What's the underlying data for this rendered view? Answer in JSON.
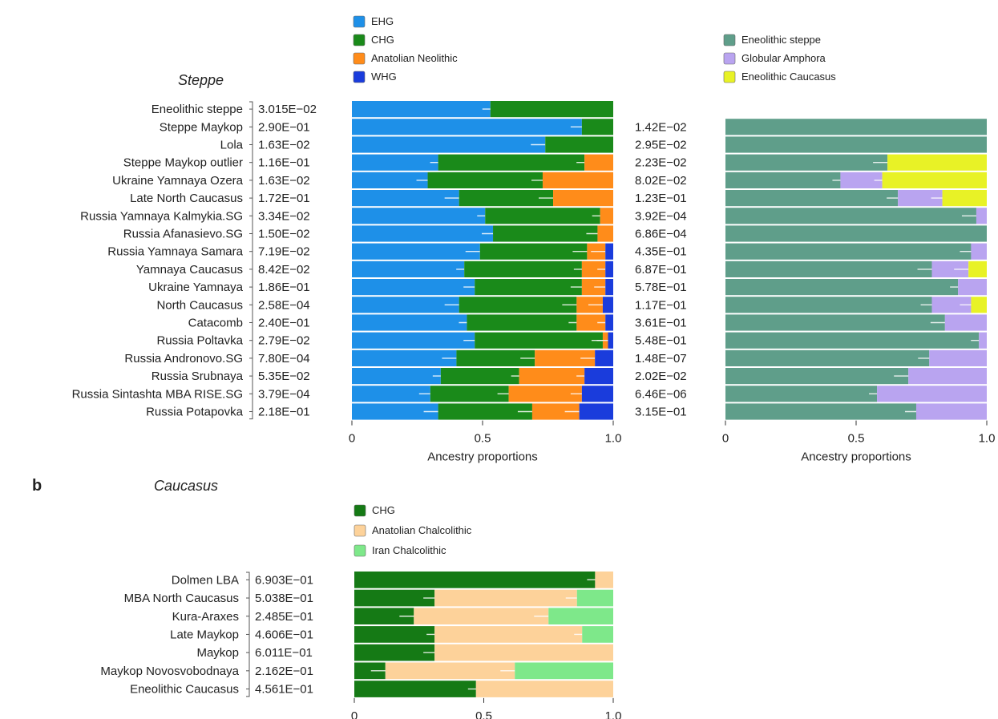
{
  "panel_b_letter": "b",
  "chart_data": [
    {
      "type": "bar",
      "stacked": true,
      "orientation": "horizontal",
      "section_title": "Steppe",
      "xlabel": "Ancestry proportions",
      "xlim": [
        0,
        1.0
      ],
      "xticks": [
        "0",
        "0.5",
        "1.0"
      ],
      "legend": [
        {
          "name": "EHG",
          "color": "#1e90e8"
        },
        {
          "name": "CHG",
          "color": "#1a8a1a"
        },
        {
          "name": "Anatolian Neolithic",
          "color": "#ff8c1a"
        },
        {
          "name": "WHG",
          "color": "#1a3cdc"
        }
      ],
      "categories": [
        "Eneolithic steppe",
        "Steppe Maykop",
        "Lola",
        "Steppe Maykop outlier",
        "Ukraine Yamnaya Ozera",
        "Late North Caucasus",
        "Russia Yamnaya Kalmykia.SG",
        "Russia Afanasievo.SG",
        "Russia Yamnaya Samara",
        "Yamnaya Caucasus",
        "Ukraine Yamnaya",
        "North Caucasus",
        "Catacomb",
        "Russia Poltavka",
        "Russia Andronovo.SG",
        "Russia Srubnaya",
        "Russia Sintashta MBA RISE.SG",
        "Russia Potapovka"
      ],
      "p_values": [
        "3.015E−02",
        "2.90E−01",
        "1.63E−02",
        "1.16E−01",
        "1.63E−02",
        "1.72E−01",
        "3.34E−02",
        "1.50E−02",
        "7.19E−02",
        "8.42E−02",
        "1.86E−01",
        "2.58E−04",
        "2.40E−01",
        "2.79E−02",
        "7.80E−04",
        "5.35E−02",
        "3.79E−04",
        "2.18E−01"
      ],
      "series": [
        {
          "name": "EHG",
          "values": [
            0.53,
            0.88,
            0.74,
            0.33,
            0.29,
            0.41,
            0.51,
            0.54,
            0.49,
            0.43,
            0.47,
            0.41,
            0.44,
            0.47,
            0.4,
            0.34,
            0.3,
            0.33
          ]
        },
        {
          "name": "CHG",
          "values": [
            0.47,
            0.12,
            0.26,
            0.56,
            0.44,
            0.36,
            0.44,
            0.4,
            0.41,
            0.45,
            0.41,
            0.45,
            0.42,
            0.49,
            0.3,
            0.3,
            0.3,
            0.36
          ]
        },
        {
          "name": "Anatolian Neolithic",
          "values": [
            0,
            0,
            0,
            0.11,
            0.27,
            0.23,
            0.05,
            0.06,
            0.07,
            0.09,
            0.09,
            0.1,
            0.11,
            0.02,
            0.23,
            0.25,
            0.28,
            0.18
          ]
        },
        {
          "name": "WHG",
          "values": [
            0,
            0,
            0,
            0,
            0,
            0,
            0,
            0,
            0.03,
            0.03,
            0.03,
            0.04,
            0.03,
            0.02,
            0.07,
            0.11,
            0.12,
            0.13
          ]
        }
      ]
    },
    {
      "type": "bar",
      "stacked": true,
      "orientation": "horizontal",
      "xlabel": "Ancestry proportions",
      "xlim": [
        0,
        1.0
      ],
      "xticks": [
        "0",
        "0.5",
        "1.0"
      ],
      "legend": [
        {
          "name": "Eneolithic steppe",
          "color": "#5f9e8a"
        },
        {
          "name": "Globular Amphora",
          "color": "#b9a4f0"
        },
        {
          "name": "Eneolithic Caucasus",
          "color": "#e8f226"
        }
      ],
      "categories": [
        "Steppe Maykop",
        "Lola",
        "Steppe Maykop outlier",
        "Ukraine Yamnaya Ozera",
        "Late North Caucasus",
        "Russia Yamnaya Kalmykia.SG",
        "Russia Afanasievo.SG",
        "Russia Yamnaya Samara",
        "Yamnaya Caucasus",
        "Ukraine Yamnaya",
        "North Caucasus",
        "Catacomb",
        "Russia Poltavka",
        "Russia Andronovo.SG",
        "Russia Srubnaya",
        "Russia Sintashta MBA RISE.SG",
        "Russia Potapovka"
      ],
      "p_values": [
        "1.42E−02",
        "2.95E−02",
        "2.23E−02",
        "8.02E−02",
        "1.23E−01",
        "3.92E−04",
        "6.86E−04",
        "4.35E−01",
        "6.87E−01",
        "5.78E−01",
        "1.17E−01",
        "3.61E−01",
        "5.48E−01",
        "1.48E−07",
        "2.02E−02",
        "6.46E−06",
        "3.15E−01"
      ],
      "series": [
        {
          "name": "Eneolithic steppe",
          "values": [
            1.0,
            1.0,
            0.62,
            0.44,
            0.66,
            0.96,
            1.0,
            0.94,
            0.79,
            0.89,
            0.79,
            0.84,
            0.97,
            0.78,
            0.7,
            0.58,
            0.73
          ]
        },
        {
          "name": "Globular Amphora",
          "values": [
            0,
            0,
            0,
            0.16,
            0.17,
            0.04,
            0,
            0.06,
            0.14,
            0.11,
            0.15,
            0.16,
            0.03,
            0.22,
            0.3,
            0.42,
            0.27
          ]
        },
        {
          "name": "Eneolithic Caucasus",
          "values": [
            0,
            0,
            0.38,
            0.4,
            0.17,
            0,
            0,
            0,
            0.07,
            0,
            0.06,
            0,
            0,
            0,
            0,
            0,
            0
          ]
        }
      ]
    },
    {
      "type": "bar",
      "stacked": true,
      "orientation": "horizontal",
      "section_title": "Caucasus",
      "xlim": [
        0,
        1.0
      ],
      "xticks": [
        "0",
        "0.5",
        "1.0"
      ],
      "legend": [
        {
          "name": "CHG",
          "color": "#157a15"
        },
        {
          "name": "Anatolian Chalcolithic",
          "color": "#fdd29a"
        },
        {
          "name": "Iran Chalcolithic",
          "color": "#7ee88a"
        }
      ],
      "categories": [
        "Dolmen LBA",
        "MBA North Caucasus",
        "Kura-Araxes",
        "Late Maykop",
        "Maykop",
        "Maykop Novosvobodnaya",
        "Eneolithic Caucasus"
      ],
      "p_values": [
        "6.903E−01",
        "5.038E−01",
        "2.485E−01",
        "4.606E−01",
        "6.011E−01",
        "2.162E−01",
        "4.561E−01"
      ],
      "series": [
        {
          "name": "CHG",
          "values": [
            0.93,
            0.31,
            0.23,
            0.31,
            0.31,
            0.12,
            0.47
          ]
        },
        {
          "name": "Anatolian Chalcolithic",
          "values": [
            0.07,
            0.55,
            0.52,
            0.57,
            0.69,
            0.5,
            0.53
          ]
        },
        {
          "name": "Iran Chalcolithic",
          "values": [
            0,
            0.14,
            0.25,
            0.12,
            0,
            0.38,
            0
          ]
        }
      ]
    }
  ]
}
